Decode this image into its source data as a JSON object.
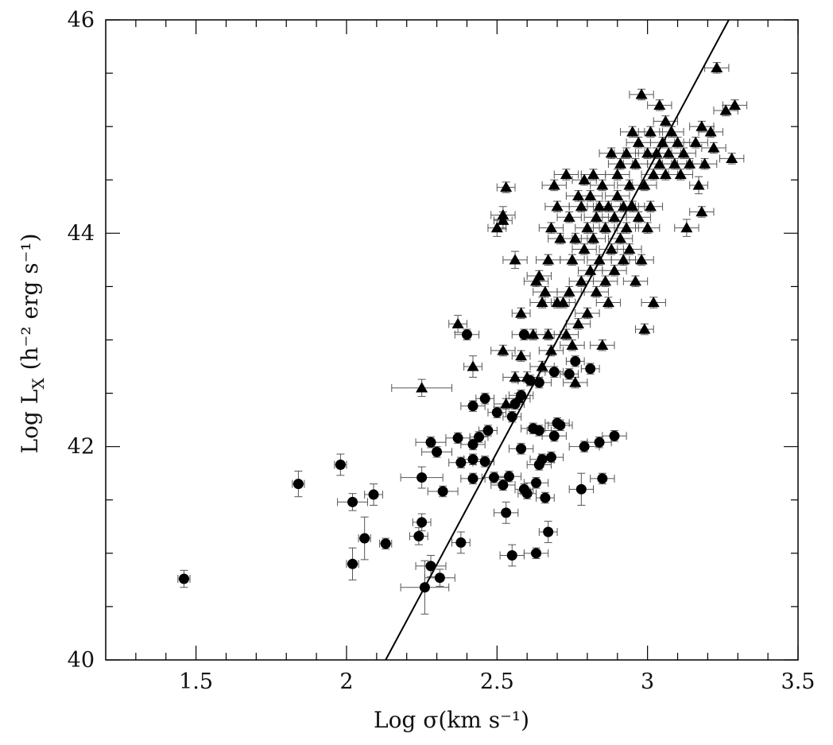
{
  "chart_data": {
    "type": "scatter",
    "title": "",
    "xlabel": "Log σ(km s⁻¹)",
    "ylabel": "Log L",
    "ylabel_sub": "X",
    "ylabel_unit": "(h⁻² erg s⁻¹)",
    "xlim": [
      1.2,
      3.5
    ],
    "ylim": [
      40,
      46
    ],
    "x_ticks": [
      1.5,
      2,
      2.5,
      3,
      3.5
    ],
    "x_tick_labels": [
      "1.5",
      "2",
      "2.5",
      "3",
      "3.5"
    ],
    "y_ticks": [
      40,
      42,
      44,
      46
    ],
    "y_tick_labels": [
      "40",
      "42",
      "44",
      "46"
    ],
    "x_minor_step": 0.1,
    "y_minor_step": 0.5,
    "grid": false,
    "legend": "none",
    "fit_line": {
      "x": [
        2.13,
        3.27
      ],
      "y": [
        40.0,
        46.0
      ]
    },
    "series": [
      {
        "marker": "circle",
        "points": [
          [
            1.46,
            40.76,
            0.02,
            0.08
          ],
          [
            1.84,
            41.65,
            0.02,
            0.12
          ],
          [
            1.98,
            41.83,
            0.02,
            0.1
          ],
          [
            2.02,
            41.48,
            0.05,
            0.08
          ],
          [
            2.02,
            40.9,
            0.02,
            0.15
          ],
          [
            2.06,
            41.14,
            0.02,
            0.2
          ],
          [
            2.09,
            41.55,
            0.03,
            0.1
          ],
          [
            2.13,
            41.09,
            0.02,
            0.05
          ],
          [
            2.24,
            41.16,
            0.03,
            0.08
          ],
          [
            2.25,
            41.29,
            0.03,
            0.08
          ],
          [
            2.25,
            41.71,
            0.07,
            0.1
          ],
          [
            2.26,
            40.68,
            0.08,
            0.25
          ],
          [
            2.28,
            40.88,
            0.05,
            0.1
          ],
          [
            2.28,
            42.04,
            0.05,
            0.05
          ],
          [
            2.3,
            41.95,
            0.05,
            0.05
          ],
          [
            2.31,
            40.77,
            0.05,
            0.08
          ],
          [
            2.32,
            41.58,
            0.05,
            0.05
          ],
          [
            2.37,
            42.08,
            0.04,
            0.05
          ],
          [
            2.38,
            41.85,
            0.04,
            0.05
          ],
          [
            2.38,
            41.1,
            0.03,
            0.1
          ],
          [
            2.4,
            43.05,
            0.04,
            0.05
          ],
          [
            2.42,
            42.38,
            0.04,
            0.05
          ],
          [
            2.42,
            42.02,
            0.04,
            0.05
          ],
          [
            2.42,
            41.88,
            0.03,
            0.05
          ],
          [
            2.42,
            41.7,
            0.04,
            0.05
          ],
          [
            2.44,
            42.09,
            0.03,
            0.05
          ],
          [
            2.46,
            42.45,
            0.03,
            0.05
          ],
          [
            2.46,
            41.86,
            0.03,
            0.05
          ],
          [
            2.47,
            42.15,
            0.03,
            0.05
          ],
          [
            2.49,
            41.71,
            0.04,
            0.05
          ],
          [
            2.5,
            42.32,
            0.03,
            0.05
          ],
          [
            2.52,
            41.64,
            0.04,
            0.05
          ],
          [
            2.53,
            41.38,
            0.04,
            0.1
          ],
          [
            2.54,
            41.72,
            0.04,
            0.05
          ],
          [
            2.55,
            40.98,
            0.04,
            0.1
          ],
          [
            2.55,
            42.28,
            0.03,
            0.05
          ],
          [
            2.56,
            42.4,
            0.03,
            0.05
          ],
          [
            2.58,
            42.48,
            0.04,
            0.05
          ],
          [
            2.58,
            41.98,
            0.04,
            0.05
          ],
          [
            2.59,
            43.05,
            0.04,
            0.05
          ],
          [
            2.59,
            41.6,
            0.03,
            0.05
          ],
          [
            2.6,
            41.56,
            0.03,
            0.05
          ],
          [
            2.61,
            42.62,
            0.04,
            0.05
          ],
          [
            2.62,
            42.17,
            0.04,
            0.05
          ],
          [
            2.63,
            41.66,
            0.04,
            0.05
          ],
          [
            2.63,
            41.0,
            0.04,
            0.05
          ],
          [
            2.64,
            42.15,
            0.04,
            0.05
          ],
          [
            2.64,
            41.83,
            0.04,
            0.05
          ],
          [
            2.64,
            42.6,
            0.04,
            0.05
          ],
          [
            2.65,
            41.88,
            0.04,
            0.05
          ],
          [
            2.66,
            41.52,
            0.03,
            0.05
          ],
          [
            2.67,
            41.2,
            0.03,
            0.1
          ],
          [
            2.68,
            41.9,
            0.04,
            0.05
          ],
          [
            2.69,
            42.1,
            0.04,
            0.05
          ],
          [
            2.69,
            42.7,
            0.03,
            0.05
          ],
          [
            2.7,
            42.22,
            0.04,
            0.05
          ],
          [
            2.71,
            42.2,
            0.04,
            0.05
          ],
          [
            2.74,
            42.68,
            0.03,
            0.05
          ],
          [
            2.76,
            42.8,
            0.03,
            0.05
          ],
          [
            2.78,
            41.6,
            0.04,
            0.15
          ],
          [
            2.79,
            42.0,
            0.05,
            0.05
          ],
          [
            2.81,
            42.73,
            0.03,
            0.05
          ],
          [
            2.84,
            42.04,
            0.04,
            0.05
          ],
          [
            2.85,
            41.7,
            0.04,
            0.05
          ],
          [
            2.89,
            42.1,
            0.04,
            0.05
          ]
        ]
      },
      {
        "marker": "triangle",
        "points": [
          [
            2.25,
            42.55,
            0.1,
            0.08
          ],
          [
            2.37,
            43.15,
            0.03,
            0.08
          ],
          [
            2.42,
            42.75,
            0.03,
            0.1
          ],
          [
            2.5,
            44.05,
            0.03,
            0.08
          ],
          [
            2.52,
            44.12,
            0.03,
            0.08
          ],
          [
            2.52,
            44.17,
            0.04,
            0.08
          ],
          [
            2.53,
            44.43,
            0.03,
            0.05
          ],
          [
            2.52,
            42.9,
            0.04,
            0.05
          ],
          [
            2.53,
            42.4,
            0.04,
            0.05
          ],
          [
            2.56,
            42.65,
            0.04,
            0.05
          ],
          [
            2.56,
            43.75,
            0.04,
            0.08
          ],
          [
            2.57,
            42.45,
            0.04,
            0.05
          ],
          [
            2.58,
            42.85,
            0.03,
            0.05
          ],
          [
            2.58,
            43.25,
            0.03,
            0.05
          ],
          [
            2.6,
            42.65,
            0.04,
            0.05
          ],
          [
            2.62,
            43.05,
            0.04,
            0.05
          ],
          [
            2.63,
            43.55,
            0.04,
            0.05
          ],
          [
            2.64,
            43.6,
            0.04,
            0.05
          ],
          [
            2.65,
            43.35,
            0.04,
            0.05
          ],
          [
            2.65,
            42.75,
            0.04,
            0.05
          ],
          [
            2.66,
            43.45,
            0.04,
            0.05
          ],
          [
            2.67,
            43.05,
            0.04,
            0.05
          ],
          [
            2.67,
            43.75,
            0.04,
            0.05
          ],
          [
            2.68,
            44.05,
            0.04,
            0.05
          ],
          [
            2.68,
            42.9,
            0.04,
            0.05
          ],
          [
            2.69,
            44.45,
            0.04,
            0.05
          ],
          [
            2.7,
            43.35,
            0.04,
            0.05
          ],
          [
            2.7,
            44.25,
            0.04,
            0.05
          ],
          [
            2.71,
            43.95,
            0.04,
            0.05
          ],
          [
            2.72,
            43.35,
            0.04,
            0.05
          ],
          [
            2.73,
            43.05,
            0.04,
            0.05
          ],
          [
            2.73,
            44.55,
            0.04,
            0.05
          ],
          [
            2.74,
            43.45,
            0.04,
            0.05
          ],
          [
            2.74,
            44.15,
            0.04,
            0.05
          ],
          [
            2.75,
            43.75,
            0.04,
            0.05
          ],
          [
            2.75,
            42.95,
            0.04,
            0.05
          ],
          [
            2.76,
            42.6,
            0.04,
            0.05
          ],
          [
            2.76,
            43.95,
            0.04,
            0.05
          ],
          [
            2.77,
            44.35,
            0.04,
            0.05
          ],
          [
            2.77,
            43.15,
            0.04,
            0.05
          ],
          [
            2.78,
            43.55,
            0.04,
            0.05
          ],
          [
            2.78,
            44.25,
            0.04,
            0.05
          ],
          [
            2.79,
            43.85,
            0.04,
            0.05
          ],
          [
            2.79,
            44.5,
            0.04,
            0.05
          ],
          [
            2.8,
            43.25,
            0.04,
            0.05
          ],
          [
            2.8,
            44.05,
            0.04,
            0.05
          ],
          [
            2.81,
            43.65,
            0.04,
            0.05
          ],
          [
            2.81,
            44.35,
            0.04,
            0.05
          ],
          [
            2.82,
            43.95,
            0.04,
            0.05
          ],
          [
            2.82,
            44.55,
            0.04,
            0.05
          ],
          [
            2.83,
            43.45,
            0.04,
            0.05
          ],
          [
            2.83,
            44.15,
            0.04,
            0.05
          ],
          [
            2.84,
            44.25,
            0.04,
            0.05
          ],
          [
            2.84,
            43.75,
            0.04,
            0.05
          ],
          [
            2.85,
            42.95,
            0.04,
            0.05
          ],
          [
            2.85,
            44.45,
            0.04,
            0.05
          ],
          [
            2.86,
            43.55,
            0.04,
            0.05
          ],
          [
            2.86,
            44.05,
            0.04,
            0.05
          ],
          [
            2.87,
            44.25,
            0.04,
            0.05
          ],
          [
            2.87,
            43.35,
            0.04,
            0.05
          ],
          [
            2.88,
            44.75,
            0.04,
            0.05
          ],
          [
            2.88,
            43.85,
            0.04,
            0.05
          ],
          [
            2.89,
            44.15,
            0.04,
            0.05
          ],
          [
            2.89,
            43.65,
            0.04,
            0.05
          ],
          [
            2.9,
            44.55,
            0.04,
            0.05
          ],
          [
            2.9,
            44.35,
            0.04,
            0.05
          ],
          [
            2.91,
            43.95,
            0.04,
            0.05
          ],
          [
            2.91,
            44.65,
            0.04,
            0.05
          ],
          [
            2.92,
            44.25,
            0.04,
            0.05
          ],
          [
            2.92,
            43.75,
            0.04,
            0.05
          ],
          [
            2.93,
            44.75,
            0.04,
            0.05
          ],
          [
            2.93,
            44.05,
            0.04,
            0.05
          ],
          [
            2.94,
            44.45,
            0.04,
            0.05
          ],
          [
            2.94,
            43.85,
            0.04,
            0.05
          ],
          [
            2.95,
            44.95,
            0.04,
            0.05
          ],
          [
            2.95,
            44.25,
            0.04,
            0.05
          ],
          [
            2.96,
            43.55,
            0.04,
            0.05
          ],
          [
            2.96,
            44.65,
            0.04,
            0.05
          ],
          [
            2.97,
            44.15,
            0.04,
            0.05
          ],
          [
            2.97,
            44.85,
            0.04,
            0.05
          ],
          [
            2.98,
            45.3,
            0.04,
            0.05
          ],
          [
            2.98,
            43.75,
            0.04,
            0.05
          ],
          [
            2.99,
            44.45,
            0.04,
            0.05
          ],
          [
            2.99,
            43.1,
            0.03,
            0.05
          ],
          [
            3.0,
            44.75,
            0.04,
            0.05
          ],
          [
            3.0,
            44.05,
            0.04,
            0.05
          ],
          [
            3.01,
            44.95,
            0.04,
            0.05
          ],
          [
            3.01,
            44.25,
            0.04,
            0.05
          ],
          [
            3.02,
            43.35,
            0.04,
            0.05
          ],
          [
            3.02,
            44.55,
            0.04,
            0.05
          ],
          [
            3.03,
            44.75,
            0.04,
            0.05
          ],
          [
            3.04,
            45.2,
            0.04,
            0.05
          ],
          [
            3.04,
            44.65,
            0.04,
            0.05
          ],
          [
            3.05,
            44.85,
            0.04,
            0.05
          ],
          [
            3.06,
            45.05,
            0.04,
            0.05
          ],
          [
            3.06,
            44.55,
            0.04,
            0.05
          ],
          [
            3.07,
            44.75,
            0.04,
            0.05
          ],
          [
            3.08,
            44.95,
            0.04,
            0.05
          ],
          [
            3.09,
            44.65,
            0.04,
            0.05
          ],
          [
            3.1,
            44.85,
            0.04,
            0.05
          ],
          [
            3.11,
            44.55,
            0.04,
            0.05
          ],
          [
            3.12,
            44.75,
            0.04,
            0.05
          ],
          [
            3.13,
            44.05,
            0.04,
            0.08
          ],
          [
            3.14,
            44.65,
            0.04,
            0.05
          ],
          [
            3.16,
            44.85,
            0.04,
            0.05
          ],
          [
            3.17,
            44.45,
            0.03,
            0.08
          ],
          [
            3.18,
            45.0,
            0.04,
            0.05
          ],
          [
            3.18,
            44.2,
            0.04,
            0.05
          ],
          [
            3.19,
            44.65,
            0.04,
            0.05
          ],
          [
            3.21,
            44.95,
            0.04,
            0.05
          ],
          [
            3.22,
            44.8,
            0.04,
            0.05
          ],
          [
            3.23,
            45.55,
            0.04,
            0.05
          ],
          [
            3.26,
            45.15,
            0.04,
            0.05
          ],
          [
            3.28,
            44.7,
            0.04,
            0.05
          ],
          [
            3.29,
            45.2,
            0.04,
            0.05
          ]
        ]
      }
    ]
  }
}
